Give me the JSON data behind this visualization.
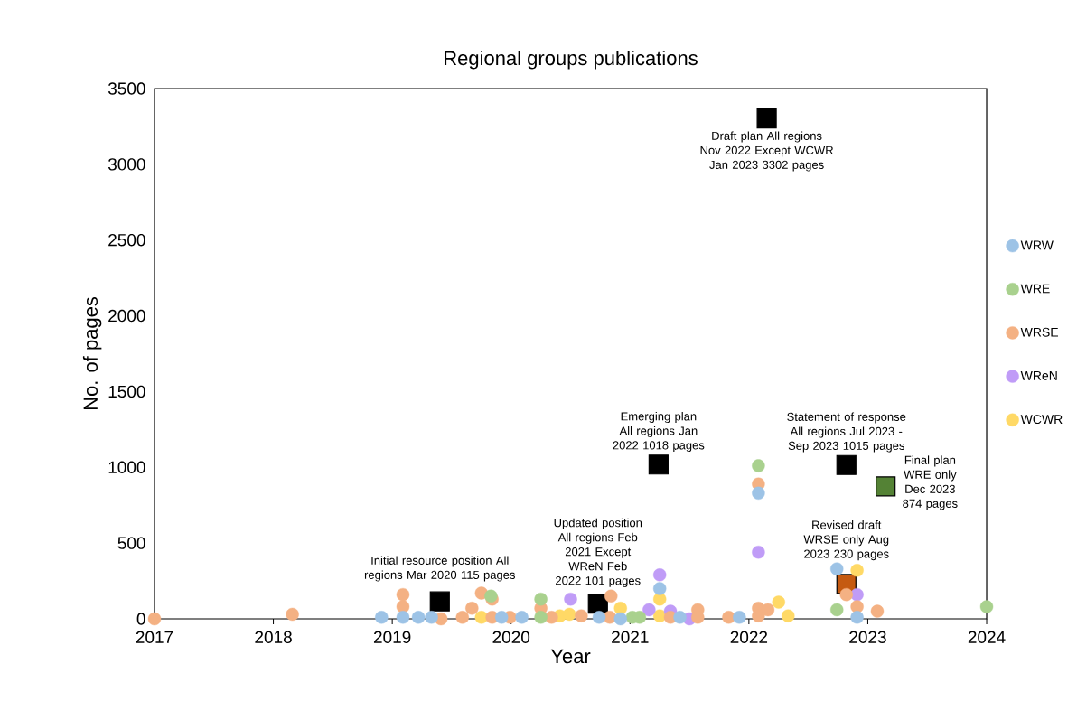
{
  "chart_data": {
    "type": "scatter",
    "title": "Regional groups publications",
    "xlabel": "Year",
    "ylabel": "No. of pages",
    "xlim": [
      2017,
      2024
    ],
    "ylim": [
      0,
      3500
    ],
    "xticks": [
      2017,
      2018,
      2019,
      2020,
      2021,
      2022,
      2023,
      2024
    ],
    "yticks": [
      0,
      500,
      1000,
      1500,
      2000,
      2500,
      3000,
      3500
    ],
    "legend": "right",
    "series": [
      {
        "name": "WRW",
        "color": "#9dc3e6",
        "marker": "circle",
        "x": [
          2018.91,
          2019.09,
          2019.22,
          2019.33,
          2019.92,
          2020.09,
          2020.74,
          2020.92,
          2021.25,
          2021.42,
          2021.92,
          2022.08,
          2022.74,
          2022.91
        ],
        "values": [
          10,
          10,
          10,
          10,
          10,
          10,
          10,
          0,
          200,
          10,
          10,
          830,
          330,
          10
        ]
      },
      {
        "name": "WRE",
        "color": "#a9d18e",
        "marker": "circle",
        "x": [
          2019.83,
          2020.25,
          2020.25,
          2021.02,
          2021.08,
          2022.08,
          2022.74,
          2024.0
        ],
        "values": [
          150,
          130,
          10,
          10,
          10,
          1010,
          60,
          80
        ]
      },
      {
        "name": "WRSE",
        "color": "#f4b183",
        "marker": "circle",
        "x": [
          2017.0,
          2018.16,
          2019.09,
          2019.09,
          2019.41,
          2019.59,
          2019.67,
          2019.75,
          2019.84,
          2019.84,
          2019.99,
          2020.25,
          2020.34,
          2020.59,
          2020.84,
          2020.83,
          2021.34,
          2021.57,
          2021.57,
          2021.83,
          2022.08,
          2022.08,
          2022.08,
          2022.16,
          2022.82,
          2022.91,
          2023.08
        ],
        "values": [
          0,
          30,
          160,
          80,
          0,
          10,
          70,
          170,
          130,
          10,
          10,
          70,
          10,
          20,
          150,
          10,
          10,
          60,
          10,
          10,
          890,
          70,
          20,
          60,
          160,
          80,
          50
        ]
      },
      {
        "name": "WReN",
        "color": "#c09cf7",
        "marker": "circle",
        "x": [
          2020.5,
          2021.16,
          2021.25,
          2021.34,
          2021.5,
          2022.08,
          2022.91
        ],
        "values": [
          130,
          60,
          290,
          50,
          0,
          440,
          160
        ]
      },
      {
        "name": "WCWR",
        "color": "#ffd966",
        "marker": "circle",
        "x": [
          2019.75,
          2020.41,
          2020.49,
          2020.92,
          2021.25,
          2021.25,
          2022.25,
          2022.33,
          2022.91
        ],
        "values": [
          10,
          20,
          30,
          70,
          130,
          20,
          110,
          20,
          320
        ]
      },
      {
        "marker": "square",
        "x": [
          2019.4,
          2020.73,
          2021.24,
          2022.15,
          2022.82,
          2022.82,
          2023.15
        ],
        "values": [
          115,
          101,
          1018,
          3302,
          1015,
          230,
          874
        ],
        "colors": [
          "#000000",
          "#000000",
          "#000000",
          "#000000",
          "#000000",
          "#c55a11",
          "#548235"
        ]
      }
    ],
    "annotations": [
      {
        "text": "Initial resource position All regions Mar 2020 115 pages",
        "x": 2019.4,
        "y": 115
      },
      {
        "text": "Updated position All regions Feb 2021 Except WReN Feb 2022 101 pages",
        "x": 2020.73,
        "y": 101
      },
      {
        "text": "Emerging plan All regions Jan 2022 1018 pages",
        "x": 2021.24,
        "y": 1018
      },
      {
        "text": "Draft plan All regions Nov 2022 Except WCWR Jan 2023 3302 pages",
        "x": 2022.15,
        "y": 3302
      },
      {
        "text": "Statement of response All regions Jul 2023 - Sep 2023 1015 pages",
        "x": 2022.82,
        "y": 1015
      },
      {
        "text": "Revised draft WRSE only Aug 2023 230 pages",
        "x": 2022.82,
        "y": 230
      },
      {
        "text": "Final plan WRE only Dec 2023 874 pages",
        "x": 2023.15,
        "y": 874
      }
    ]
  }
}
